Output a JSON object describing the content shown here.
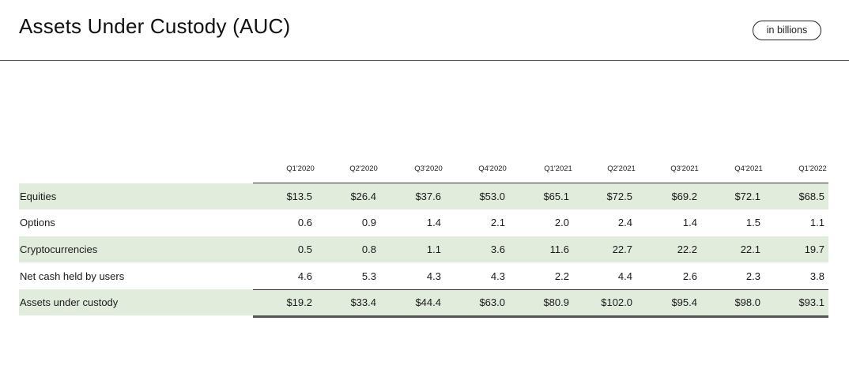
{
  "header": {
    "title": "Assets Under Custody (AUC)",
    "unit_badge": "in billions"
  },
  "table": {
    "columns": [
      "Q1'2020",
      "Q2'2020",
      "Q3'2020",
      "Q4'2020",
      "Q1'2021",
      "Q2'2021",
      "Q3'2021",
      "Q4'2021",
      "Q1'2022"
    ],
    "rows": [
      {
        "label": "Equities",
        "values": [
          "$13.5",
          "$26.4",
          "$37.6",
          "$53.0",
          "$65.1",
          "$72.5",
          "$69.2",
          "$72.1",
          "$68.5"
        ]
      },
      {
        "label": "Options",
        "values": [
          "0.6",
          "0.9",
          "1.4",
          "2.1",
          "2.0",
          "2.4",
          "1.4",
          "1.5",
          "1.1"
        ]
      },
      {
        "label": "Cryptocurrencies",
        "values": [
          "0.5",
          "0.8",
          "1.1",
          "3.6",
          "11.6",
          "22.7",
          "22.2",
          "22.1",
          "19.7"
        ]
      },
      {
        "label": "Net cash held by users",
        "values": [
          "4.6",
          "5.3",
          "4.3",
          "4.3",
          "2.2",
          "4.4",
          "2.6",
          "2.3",
          "3.8"
        ]
      },
      {
        "label": "Assets under custody",
        "values": [
          "$19.2",
          "$33.4",
          "$44.4",
          "$63.0",
          "$80.9",
          "$102.0",
          "$95.4",
          "$98.0",
          "$93.1"
        ]
      }
    ]
  },
  "colors": {
    "shaded_row": "#e2ecdd",
    "rule": "#555555"
  }
}
